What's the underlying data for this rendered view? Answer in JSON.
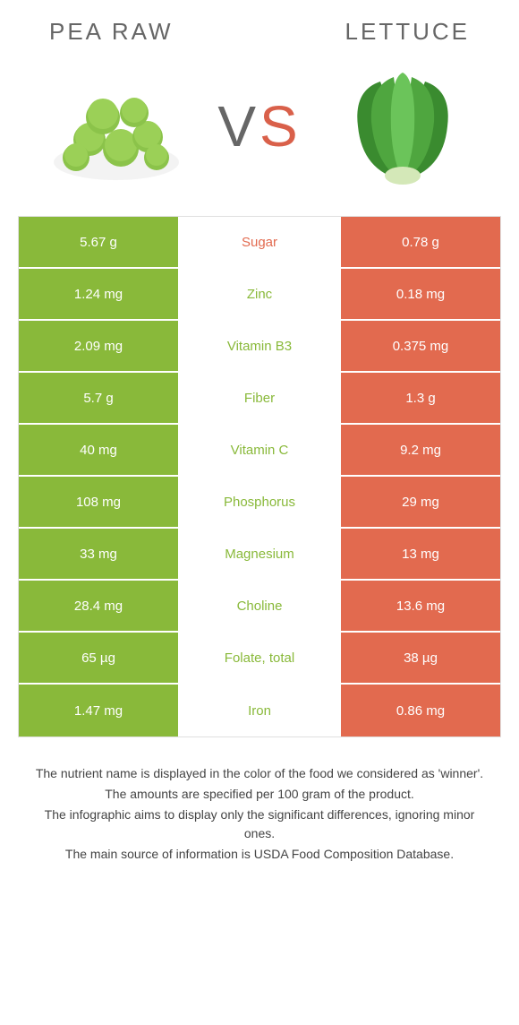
{
  "colors": {
    "left": "#89b93a",
    "right": "#e26a4f",
    "text_mid_winner_left": "#89b93a",
    "text_mid_winner_right": "#e26a4f"
  },
  "header": {
    "left_title": "Pea raw",
    "right_title": "Lettuce",
    "vs_v": "V",
    "vs_s": "S"
  },
  "rows": [
    {
      "left": "5.67 g",
      "label": "Sugar",
      "right": "0.78 g",
      "winner": "right"
    },
    {
      "left": "1.24 mg",
      "label": "Zinc",
      "right": "0.18 mg",
      "winner": "left"
    },
    {
      "left": "2.09 mg",
      "label": "Vitamin B3",
      "right": "0.375 mg",
      "winner": "left"
    },
    {
      "left": "5.7 g",
      "label": "Fiber",
      "right": "1.3 g",
      "winner": "left"
    },
    {
      "left": "40 mg",
      "label": "Vitamin C",
      "right": "9.2 mg",
      "winner": "left"
    },
    {
      "left": "108 mg",
      "label": "Phosphorus",
      "right": "29 mg",
      "winner": "left"
    },
    {
      "left": "33 mg",
      "label": "Magnesium",
      "right": "13 mg",
      "winner": "left"
    },
    {
      "left": "28.4 mg",
      "label": "Choline",
      "right": "13.6 mg",
      "winner": "left"
    },
    {
      "left": "65 µg",
      "label": "Folate, total",
      "right": "38 µg",
      "winner": "left"
    },
    {
      "left": "1.47 mg",
      "label": "Iron",
      "right": "0.86 mg",
      "winner": "left"
    }
  ],
  "footnote": {
    "l1": "The nutrient name is displayed in the color of the food we considered as 'winner'.",
    "l2": "The amounts are specified per 100 gram of the product.",
    "l3": "The infographic aims to display only the significant differences, ignoring minor ones.",
    "l4": "The main source of information is USDA Food Composition Database."
  }
}
